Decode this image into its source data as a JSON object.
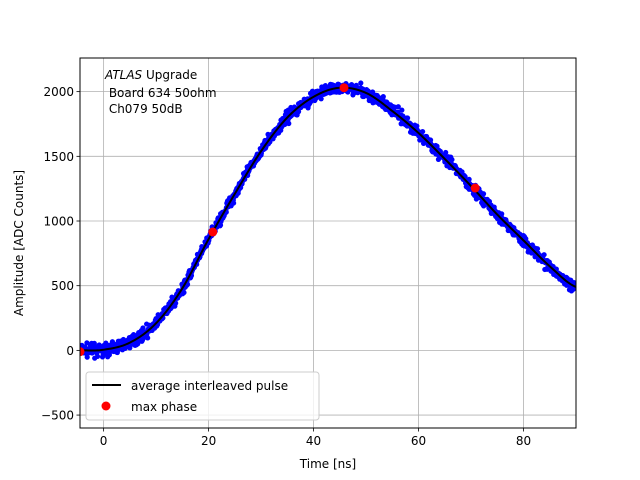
{
  "chart_data": {
    "type": "scatter",
    "xlabel": "Time [ns]",
    "ylabel": "Amplitude [ADC Counts]",
    "xlim": [
      -4.5,
      90
    ],
    "ylim": [
      -600,
      2260
    ],
    "xticks": [
      0,
      20,
      40,
      60,
      80
    ],
    "yticks": [
      -500,
      0,
      500,
      1000,
      1500,
      2000
    ],
    "grid": true,
    "legend_position": "lower-left",
    "annotation": {
      "line1_italic": "ATLAS",
      "line1_rest": " Upgrade",
      "line2": " Board 634 50ohm",
      "line3": " Ch079 50dB"
    },
    "colors": {
      "samples": "#0000ff",
      "average": "#000000",
      "max_phase": "#ff0000",
      "grid": "#b0b0b0"
    },
    "series": [
      {
        "name": "average interleaved pulse",
        "kind": "line",
        "x": [
          -4.5,
          0,
          5,
          10,
          15,
          20,
          25,
          30,
          35,
          40,
          45,
          50,
          55,
          60,
          65,
          70,
          75,
          80,
          85,
          90
        ],
        "y": [
          0,
          5,
          60,
          210,
          480,
          860,
          1210,
          1540,
          1800,
          1960,
          2030,
          1990,
          1850,
          1680,
          1480,
          1270,
          1050,
          850,
          650,
          490
        ]
      },
      {
        "name": "max phase",
        "kind": "points",
        "x": [
          -4.5,
          20.8,
          45.8,
          70.8
        ],
        "y": [
          -10,
          915,
          2030,
          1255
        ]
      }
    ]
  }
}
